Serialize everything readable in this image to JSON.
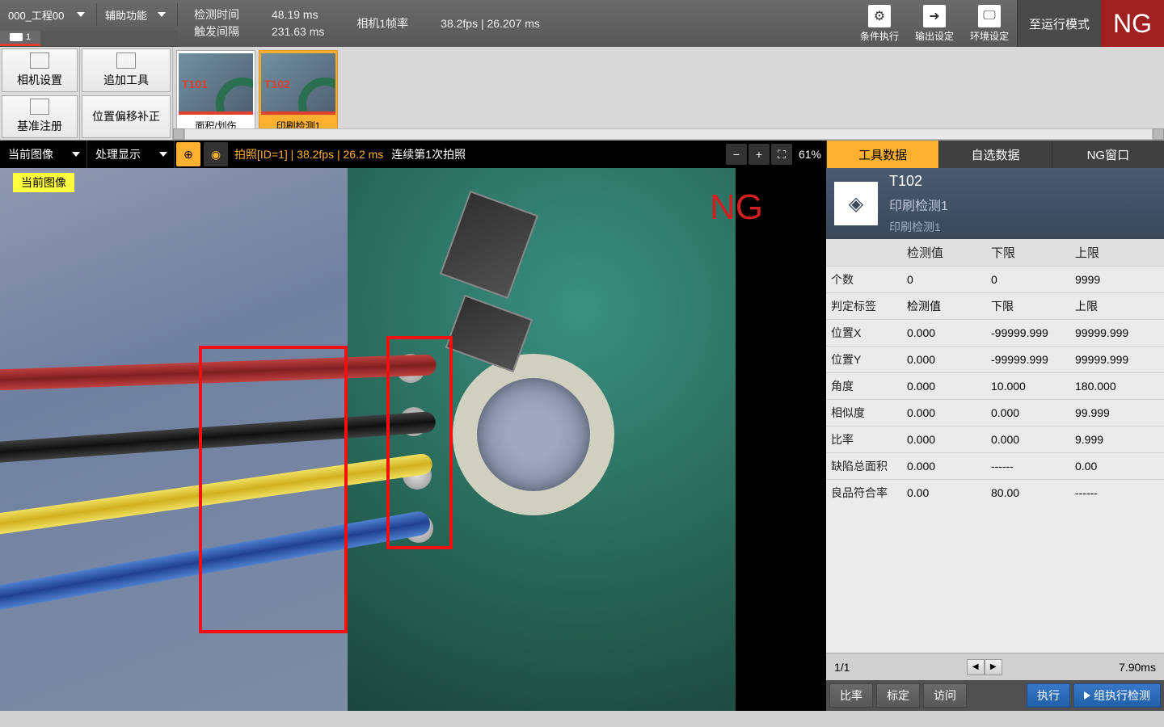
{
  "topbar": {
    "project_dd": "000_工程00",
    "aux_dd": "辅助功能",
    "labels": {
      "detect_time": "检测时间",
      "trigger_int": "触发间隔",
      "cam_fps": "相机1帧率"
    },
    "values": {
      "detect_time": "48.19 ms",
      "trigger_int": "231.63 ms",
      "cam_fps": "38.2fps | 26.207 ms"
    },
    "icon_btns": {
      "cond_exec": "条件执行",
      "out_set": "输出设定",
      "env_set": "环境设定"
    },
    "run_mode": "至运行模式",
    "ng": "NG",
    "cam_tab": "1"
  },
  "toolcol": {
    "cam_set": "相机设置",
    "add_tool": "追加工具",
    "ref_reg": "基准注册",
    "pos_comp": "位置偏移补正"
  },
  "thumbs": [
    {
      "label": "T101",
      "caption": "面积/划伤"
    },
    {
      "label": "T102",
      "caption": "印刷检测1"
    }
  ],
  "imgctrl": {
    "cur_img": "当前图像",
    "proc_disp": "处理显示",
    "photo_txt": "拍照[ID=1] | 38.2fps | 26.2 ms",
    "cont_txt": "连续第1次拍照",
    "zoom": "61%"
  },
  "right_tabs": {
    "tool_data": "工具数据",
    "cust_data": "自选数据",
    "ng_win": "NG窗口"
  },
  "view": {
    "cur_label": "当前图像",
    "ng": "NG"
  },
  "tool_header": {
    "id": "T102",
    "name": "印刷检测1",
    "sub": "印刷检测1"
  },
  "table": {
    "cols": [
      "",
      "检测值",
      "下限",
      "上限"
    ],
    "rows": [
      [
        "个数",
        "0",
        "0",
        "9999"
      ],
      [
        "判定标签",
        "检测值",
        "下限",
        "上限"
      ],
      [
        "位置X",
        "0.000",
        "-99999.999",
        "99999.999"
      ],
      [
        "位置Y",
        "0.000",
        "-99999.999",
        "99999.999"
      ],
      [
        "角度",
        "0.000",
        "10.000",
        "180.000"
      ],
      [
        "相似度",
        "0.000",
        "0.000",
        "99.999"
      ],
      [
        "比率",
        "0.000",
        "0.000",
        "9.999"
      ],
      [
        "缺陷总面积",
        "0.000",
        "------",
        "0.00"
      ],
      [
        "良品符合率",
        "0.00",
        "80.00",
        "------"
      ]
    ]
  },
  "pager": {
    "page": "1/1",
    "time": "7.90ms"
  },
  "actions": {
    "ratio": "比率",
    "calib": "标定",
    "visit": "访问",
    "exec": "执行",
    "group_exec": "组执行检测"
  },
  "colors": {
    "ng_red": "#a02020",
    "accent_orange": "#ffb030",
    "roi_red": "#f01010",
    "panel_blue": "#3a4858",
    "btn_blue": "#2868b8"
  }
}
